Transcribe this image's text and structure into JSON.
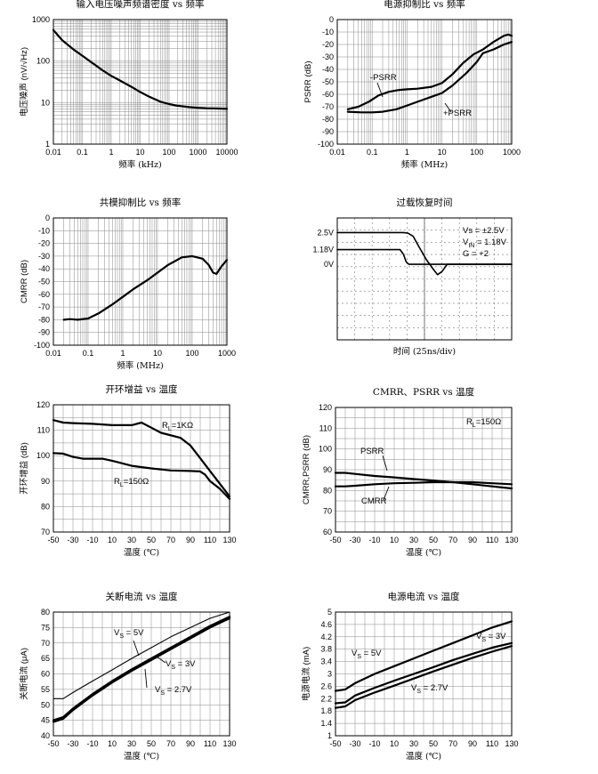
{
  "chart_data": [
    {
      "id": "noise",
      "type": "line",
      "title": "输入电压噪声频谱密度  vs  频率",
      "xlabel": "频率 (kHz)",
      "ylabel": "电压噪声 (nV/√Hz)",
      "xscale": "log",
      "yscale": "log",
      "xlim": [
        0.01,
        10000
      ],
      "ylim": [
        1,
        1000
      ],
      "xticks": [
        "0.01",
        "0.1",
        "1",
        "10",
        "100",
        "1000",
        "10000"
      ],
      "yticks": [
        "1",
        "10",
        "100",
        "1000"
      ],
      "grid": true,
      "series": [
        {
          "x": [
            0.01,
            0.02,
            0.05,
            0.1,
            0.2,
            0.5,
            1,
            2,
            5,
            10,
            20,
            50,
            100,
            200,
            500,
            1000,
            2000,
            5000,
            10000
          ],
          "y": [
            560,
            320,
            190,
            135,
            95,
            60,
            44,
            34,
            24,
            18,
            14,
            10.5,
            9.2,
            8.4,
            7.8,
            7.5,
            7.3,
            7.2,
            7.1
          ]
        }
      ],
      "annotations": []
    },
    {
      "id": "psrr",
      "type": "line",
      "title": "电源抑制比  vs  频率",
      "xlabel": "频率 (MHz)",
      "ylabel": "PSRR (dB)",
      "xscale": "log",
      "yscale": "linear",
      "xlim": [
        0.01,
        1000
      ],
      "ylim": [
        -100,
        0
      ],
      "xticks": [
        "0.01",
        "0.1",
        "1",
        "10",
        "100",
        "1000"
      ],
      "yticks": [
        "0",
        "-10",
        "-20",
        "-30",
        "-40",
        "-50",
        "-60",
        "-70",
        "-80",
        "-90",
        "-100"
      ],
      "grid": true,
      "series": [
        {
          "name": "-PSRR",
          "x": [
            0.02,
            0.04,
            0.08,
            0.15,
            0.3,
            0.6,
            1,
            2,
            5,
            10,
            20,
            40,
            80,
            150,
            300,
            600,
            800,
            1000
          ],
          "y": [
            -72,
            -70,
            -66,
            -61,
            -58,
            -56.5,
            -56,
            -55.5,
            -54,
            -51,
            -44,
            -35,
            -28,
            -24,
            -18,
            -13,
            -12,
            -13
          ]
        },
        {
          "name": "+PSRR",
          "x": [
            0.02,
            0.05,
            0.1,
            0.2,
            0.5,
            1,
            2,
            5,
            10,
            20,
            50,
            100,
            150,
            300,
            600,
            1000
          ],
          "y": [
            -74,
            -74.5,
            -74.5,
            -74,
            -72,
            -69,
            -66,
            -62,
            -59,
            -53,
            -43,
            -34,
            -27,
            -24,
            -20,
            -18
          ]
        }
      ],
      "annotations": [
        {
          "text": "-PSRR",
          "x": 0.2,
          "y": -44
        },
        {
          "text": "+PSRR",
          "x": 22,
          "y": -75
        }
      ]
    },
    {
      "id": "cmrr",
      "type": "line",
      "title": "共模抑制比  vs  频率",
      "xlabel": "频率 (MHz)",
      "ylabel": "CMRR (dB)",
      "xscale": "log",
      "yscale": "linear",
      "xlim": [
        0.01,
        1000
      ],
      "ylim": [
        -100,
        0
      ],
      "xticks": [
        "0.01",
        "0.1",
        "1",
        "10",
        "100",
        "1000"
      ],
      "yticks": [
        "0",
        "-10",
        "-20",
        "-30",
        "-40",
        "-50",
        "-60",
        "-70",
        "-80",
        "-90",
        "-100"
      ],
      "grid": true,
      "series": [
        {
          "x": [
            0.02,
            0.03,
            0.05,
            0.1,
            0.2,
            0.5,
            1,
            2,
            5,
            10,
            20,
            50,
            100,
            200,
            300,
            400,
            500,
            700,
            1000
          ],
          "y": [
            -80,
            -79.5,
            -80,
            -79,
            -75,
            -68,
            -62,
            -56,
            -49,
            -43,
            -37,
            -31,
            -30,
            -32,
            -37,
            -43,
            -44,
            -38,
            -33
          ]
        }
      ],
      "annotations": []
    },
    {
      "id": "overload",
      "type": "line",
      "title": "过载恢复时间",
      "xlabel": "时间 (25ns/div)",
      "ylabel": "",
      "xlim": [
        0,
        10
      ],
      "ylim": [
        -5,
        5
      ],
      "yticks_show": [
        "2.5V",
        "1.18V",
        "0V"
      ],
      "ytick_pos": [
        3.8,
        2.4,
        1.2
      ],
      "grid": true,
      "series": [
        {
          "x": [
            0,
            3.8,
            4.05,
            4.35,
            4.7,
            5.1,
            5.5,
            5.75,
            6,
            6.3,
            10
          ],
          "y": [
            3.8,
            3.8,
            3.75,
            3.5,
            2.6,
            1.6,
            0.8,
            0.35,
            0.6,
            1.2,
            1.2
          ]
        },
        {
          "x": [
            0,
            3.6,
            3.8,
            3.95,
            4.1,
            10
          ],
          "y": [
            2.4,
            2.4,
            2.0,
            1.4,
            1.2,
            1.2
          ]
        }
      ],
      "annotations": [
        {
          "text": "Vs = ±2.5V"
        },
        {
          "text": "V",
          "sub": "IN",
          "rest": " = 1.18V"
        },
        {
          "text": "G = +2"
        }
      ]
    },
    {
      "id": "olgain",
      "type": "line",
      "title": "开环增益  vs  温度",
      "xlabel": "温度 (℃)",
      "ylabel": "开环增益 (dB)",
      "xlim": [
        -50,
        130
      ],
      "ylim": [
        70,
        120
      ],
      "xticks": [
        "-50",
        "-30",
        "-10",
        "10",
        "30",
        "50",
        "70",
        "90",
        "110",
        "130"
      ],
      "yticks": [
        "70",
        "80",
        "90",
        "100",
        "110",
        "120"
      ],
      "grid": true,
      "series": [
        {
          "name": "RL=1KΩ",
          "x": [
            -50,
            -40,
            -30,
            -10,
            10,
            30,
            40,
            50,
            60,
            80,
            90,
            100,
            110,
            120,
            130
          ],
          "y": [
            114,
            113,
            112.8,
            112.5,
            112,
            112,
            113,
            111,
            109,
            107,
            104,
            99,
            94,
            89,
            84
          ]
        },
        {
          "name": "RL=150Ω",
          "x": [
            -50,
            -40,
            -30,
            -20,
            -10,
            0,
            10,
            30,
            50,
            70,
            90,
            100,
            105,
            110,
            120,
            130
          ],
          "y": [
            101,
            100.8,
            99.5,
            98.8,
            98.8,
            98.8,
            98,
            96,
            95,
            94.2,
            94,
            93.8,
            92.5,
            90,
            87,
            83
          ]
        }
      ],
      "annotations": [
        {
          "text": "R",
          "sub": "L",
          "rest": "=1KΩ"
        },
        {
          "text": "R",
          "sub": "L",
          "rest": "=150Ω"
        }
      ]
    },
    {
      "id": "cmrrpsrr",
      "type": "line",
      "title": "CMRR、PSRR  vs  温度",
      "xlabel": "温度 (℃)",
      "ylabel": "CMRR,PSRR (dB)",
      "xlim": [
        -50,
        130
      ],
      "ylim": [
        60,
        120
      ],
      "xticks": [
        "-50",
        "-30",
        "-10",
        "10",
        "30",
        "50",
        "70",
        "90",
        "110",
        "130"
      ],
      "yticks": [
        "60",
        "70",
        "80",
        "90",
        "100",
        "110",
        "120"
      ],
      "grid": true,
      "series": [
        {
          "name": "PSRR",
          "x": [
            -50,
            -40,
            -30,
            -10,
            10,
            30,
            50,
            70,
            90,
            110,
            130
          ],
          "y": [
            88.5,
            88.5,
            88,
            87,
            86.3,
            85.5,
            84.8,
            84,
            83,
            82,
            81
          ]
        },
        {
          "name": "CMRR",
          "x": [
            -50,
            -40,
            -30,
            -10,
            10,
            30,
            50,
            70,
            90,
            110,
            130
          ],
          "y": [
            82,
            82,
            82.3,
            83,
            83.5,
            83.7,
            84,
            84,
            84,
            83.5,
            83
          ]
        }
      ],
      "annotations": [
        {
          "text": "R",
          "sub": "L",
          "rest": "=150Ω"
        },
        {
          "text": "PSRR"
        },
        {
          "text": "CMRR"
        }
      ]
    },
    {
      "id": "shutdown",
      "type": "line",
      "title": "关断电流  vs  温度",
      "xlabel": "温度 (℃)",
      "ylabel": "关断电流 (μA)",
      "xlim": [
        -50,
        130
      ],
      "ylim": [
        40,
        80
      ],
      "xticks": [
        "-50",
        "-30",
        "-10",
        "10",
        "30",
        "50",
        "70",
        "90",
        "110",
        "130"
      ],
      "yticks": [
        "40",
        "45",
        "50",
        "55",
        "60",
        "65",
        "70",
        "75",
        "80"
      ],
      "grid": true,
      "series": [
        {
          "name": "VS = 5V",
          "x": [
            -50,
            -40,
            -30,
            -10,
            10,
            30,
            50,
            70,
            90,
            110,
            130
          ],
          "y": [
            52,
            52,
            54,
            57.7,
            61.3,
            65,
            68.5,
            72,
            75,
            78,
            80
          ]
        },
        {
          "name": "VS = 3V",
          "x": [
            -50,
            -40,
            -30,
            -10,
            10,
            30,
            50,
            70,
            90,
            110,
            130
          ],
          "y": [
            45,
            46,
            48.8,
            53.5,
            57.7,
            61.5,
            65,
            68.5,
            72,
            75.5,
            78.5
          ]
        },
        {
          "name": "VS = 2.7V",
          "x": [
            -50,
            -40,
            -30,
            -10,
            10,
            30,
            50,
            70,
            90,
            110,
            130
          ],
          "y": [
            44.5,
            45.5,
            48.3,
            53,
            57.2,
            61,
            64.5,
            68,
            71.5,
            75,
            78
          ]
        }
      ],
      "annotations": [
        {
          "text": "V",
          "sub": "S",
          "rest": " = 5V"
        },
        {
          "text": "V",
          "sub": "S",
          "rest": " = 3V"
        },
        {
          "text": "V",
          "sub": "S",
          "rest": " = 2.7V"
        }
      ]
    },
    {
      "id": "supply",
      "type": "line",
      "title": "电源电流  vs  温度",
      "xlabel": "温度 (℃)",
      "ylabel": "电源电流 (mA)",
      "xlim": [
        -50,
        130
      ],
      "ylim": [
        1,
        5
      ],
      "xticks": [
        "-50",
        "-30",
        "-10",
        "10",
        "30",
        "50",
        "70",
        "90",
        "110",
        "130"
      ],
      "yticks": [
        "1",
        "1.4",
        "1.8",
        "2.2",
        "2.6",
        "3",
        "3.4",
        "3.8",
        "4.2",
        "4.6",
        "5"
      ],
      "grid": true,
      "series": [
        {
          "name": "VS = 5V",
          "x": [
            -50,
            -40,
            -30,
            -10,
            10,
            30,
            50,
            70,
            90,
            110,
            130
          ],
          "y": [
            2.45,
            2.5,
            2.7,
            3.0,
            3.25,
            3.5,
            3.75,
            4.0,
            4.25,
            4.5,
            4.7
          ]
        },
        {
          "name": "VS = 3V",
          "x": [
            -50,
            -40,
            -30,
            -10,
            10,
            30,
            50,
            70,
            90,
            110,
            130
          ],
          "y": [
            2.05,
            2.08,
            2.3,
            2.55,
            2.78,
            3.0,
            3.22,
            3.45,
            3.65,
            3.85,
            4.0
          ]
        },
        {
          "name": "VS = 2.7V",
          "x": [
            -50,
            -40,
            -30,
            -10,
            10,
            30,
            50,
            70,
            90,
            110,
            130
          ],
          "y": [
            1.9,
            1.95,
            2.15,
            2.4,
            2.62,
            2.85,
            3.08,
            3.3,
            3.52,
            3.72,
            3.9
          ]
        }
      ],
      "annotations": [
        {
          "text": "V",
          "sub": "S",
          "rest": " = 3V"
        },
        {
          "text": "V",
          "sub": "S",
          "rest": " = 5V"
        },
        {
          "text": "V",
          "sub": "S",
          "rest": " = 2.7V"
        }
      ]
    }
  ]
}
